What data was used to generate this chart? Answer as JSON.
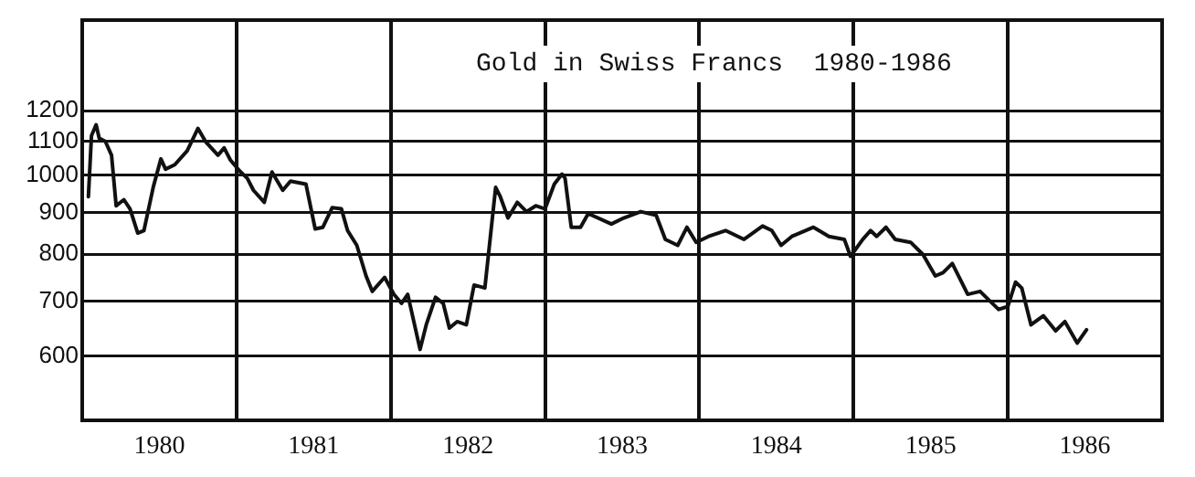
{
  "chart_data": {
    "type": "line",
    "title": "Gold in Swiss Francs  1980-1986",
    "x": [
      1980.04,
      1980.06,
      1980.09,
      1980.11,
      1980.15,
      1980.19,
      1980.22,
      1980.27,
      1980.31,
      1980.36,
      1980.4,
      1980.46,
      1980.51,
      1980.54,
      1980.6,
      1980.68,
      1980.75,
      1980.8,
      1980.88,
      1980.92,
      1980.96,
      1981.02,
      1981.07,
      1981.11,
      1981.18,
      1981.23,
      1981.3,
      1981.35,
      1981.45,
      1981.51,
      1981.56,
      1981.62,
      1981.68,
      1981.72,
      1981.78,
      1981.84,
      1981.88,
      1981.96,
      1982.02,
      1982.07,
      1982.11,
      1982.19,
      1982.23,
      1982.29,
      1982.34,
      1982.38,
      1982.43,
      1982.49,
      1982.54,
      1982.61,
      1982.68,
      1982.71,
      1982.76,
      1982.82,
      1982.88,
      1982.94,
      1983.0,
      1983.06,
      1983.11,
      1983.13,
      1983.17,
      1983.23,
      1983.28,
      1983.43,
      1983.51,
      1983.62,
      1983.72,
      1983.78,
      1983.86,
      1983.92,
      1983.98,
      1984.06,
      1984.17,
      1984.29,
      1984.41,
      1984.47,
      1984.53,
      1984.6,
      1984.74,
      1984.84,
      1984.94,
      1984.98,
      1985.06,
      1985.11,
      1985.15,
      1985.21,
      1985.27,
      1985.37,
      1985.45,
      1985.53,
      1985.58,
      1985.64,
      1985.74,
      1985.82,
      1985.94,
      1986.0,
      1986.05,
      1986.09,
      1986.15,
      1986.23,
      1986.31,
      1986.37,
      1986.45,
      1986.51
    ],
    "series": [
      {
        "color": "#111111",
        "values": [
          941,
          1118,
          1153,
          1110,
          1100,
          1058,
          917,
          933,
          909,
          849,
          855,
          966,
          1047,
          1017,
          1030,
          1071,
          1141,
          1099,
          1058,
          1080,
          1044,
          1012,
          991,
          958,
          926,
          1009,
          958,
          983,
          975,
          859,
          863,
          912,
          909,
          855,
          820,
          752,
          720,
          749,
          714,
          696,
          714,
          611,
          655,
          708,
          696,
          649,
          661,
          655,
          733,
          727,
          966,
          941,
          886,
          926,
          902,
          917,
          909,
          975,
          1003,
          991,
          863,
          863,
          897,
          871,
          886,
          902,
          893,
          834,
          820,
          863,
          827,
          841,
          855,
          834,
          866,
          855,
          820,
          841,
          863,
          841,
          834,
          795,
          834,
          855,
          841,
          863,
          834,
          827,
          799,
          752,
          759,
          779,
          714,
          720,
          684,
          690,
          739,
          727,
          655,
          672,
          644,
          661,
          622,
          646
        ]
      }
    ],
    "xlim": [
      1980,
      1987
    ],
    "xticks": [
      {
        "value": 1980.5,
        "label": "1980"
      },
      {
        "value": 1981,
        "label": null
      },
      {
        "value": 1981.5,
        "label": "1981"
      },
      {
        "value": 1982,
        "label": null
      },
      {
        "value": 1982.5,
        "label": "1982"
      },
      {
        "value": 1983,
        "label": null
      },
      {
        "value": 1983.5,
        "label": "1983"
      },
      {
        "value": 1984,
        "label": null
      },
      {
        "value": 1984.5,
        "label": "1984"
      },
      {
        "value": 1985,
        "label": null
      },
      {
        "value": 1985.5,
        "label": "1985"
      },
      {
        "value": 1986,
        "label": null
      },
      {
        "value": 1986.5,
        "label": "1986"
      }
    ],
    "ylim": [
      500,
      1550
    ],
    "yticks": [
      600,
      700,
      800,
      900,
      1000,
      1100,
      1200
    ],
    "log": "y",
    "grid": true,
    "legend": false,
    "marker": "none",
    "line_style": "solid"
  }
}
